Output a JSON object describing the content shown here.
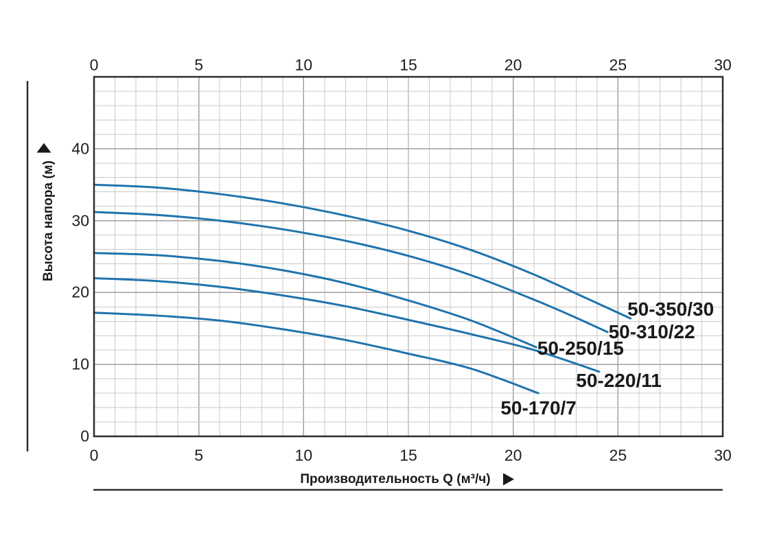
{
  "chart_data": {
    "type": "line",
    "title": "",
    "xlabel": "Производительность Q (м³/ч)",
    "ylabel": "Высота напора (м)",
    "xlim": [
      0,
      30
    ],
    "ylim": [
      0,
      50
    ],
    "x_ticks_top": [
      0,
      5,
      10,
      15,
      20,
      25,
      30
    ],
    "x_ticks_bottom": [
      0,
      5,
      10,
      15,
      20,
      25,
      30
    ],
    "y_ticks": [
      0,
      10,
      20,
      30,
      40
    ],
    "x_minor_step": 1,
    "x_major_step": 5,
    "y_minor_step": 2,
    "y_major_step": 10,
    "grid": "minor and major, on",
    "legend_position": "inline curve labels",
    "series": [
      {
        "name": "50-350/30",
        "points": [
          [
            0,
            35
          ],
          [
            3,
            34.6
          ],
          [
            6,
            33.7
          ],
          [
            9,
            32.4
          ],
          [
            12,
            30.7
          ],
          [
            15,
            28.6
          ],
          [
            18,
            25.9
          ],
          [
            21,
            22.5
          ],
          [
            23.5,
            19.2
          ],
          [
            25.6,
            16.4
          ]
        ],
        "label_pos": [
          25.45,
          17.7
        ]
      },
      {
        "name": "50-310/22",
        "points": [
          [
            0,
            31.2
          ],
          [
            3,
            30.8
          ],
          [
            6,
            30.0
          ],
          [
            9,
            28.8
          ],
          [
            12,
            27.2
          ],
          [
            15,
            25.1
          ],
          [
            18,
            22.4
          ],
          [
            21,
            19.0
          ],
          [
            23,
            16.5
          ],
          [
            24.5,
            14.5
          ]
        ],
        "label_pos": [
          24.55,
          14.55
        ]
      },
      {
        "name": "50-250/15",
        "points": [
          [
            0,
            25.5
          ],
          [
            3,
            25.2
          ],
          [
            6,
            24.4
          ],
          [
            9,
            23.1
          ],
          [
            12,
            21.3
          ],
          [
            15,
            18.9
          ],
          [
            18,
            16.1
          ],
          [
            21.1,
            12.4
          ]
        ],
        "label_pos": [
          21.15,
          12.25
        ]
      },
      {
        "name": "50-220/11",
        "points": [
          [
            0,
            22
          ],
          [
            3,
            21.6
          ],
          [
            6,
            20.8
          ],
          [
            9,
            19.6
          ],
          [
            12,
            18.1
          ],
          [
            15,
            16.2
          ],
          [
            18,
            14.2
          ],
          [
            21,
            12.0
          ],
          [
            24.1,
            9.0
          ]
        ],
        "label_pos": [
          23.0,
          7.7
        ]
      },
      {
        "name": "50-170/7",
        "points": [
          [
            0,
            17.2
          ],
          [
            3,
            16.8
          ],
          [
            6,
            16.1
          ],
          [
            9,
            14.9
          ],
          [
            12,
            13.4
          ],
          [
            15,
            11.5
          ],
          [
            18,
            9.4
          ],
          [
            21.2,
            6.0
          ]
        ],
        "label_pos": [
          19.4,
          3.9
        ]
      }
    ]
  },
  "colors": {
    "curve": "#1f73ad",
    "grid_minor": "#c9c9c9",
    "grid_major": "#a0a0a0",
    "border": "#2d2d2d",
    "text": "#1f1f1f"
  },
  "icons": {
    "y_axis_arrow": "up-triangle",
    "x_axis_arrow": "right-triangle"
  }
}
